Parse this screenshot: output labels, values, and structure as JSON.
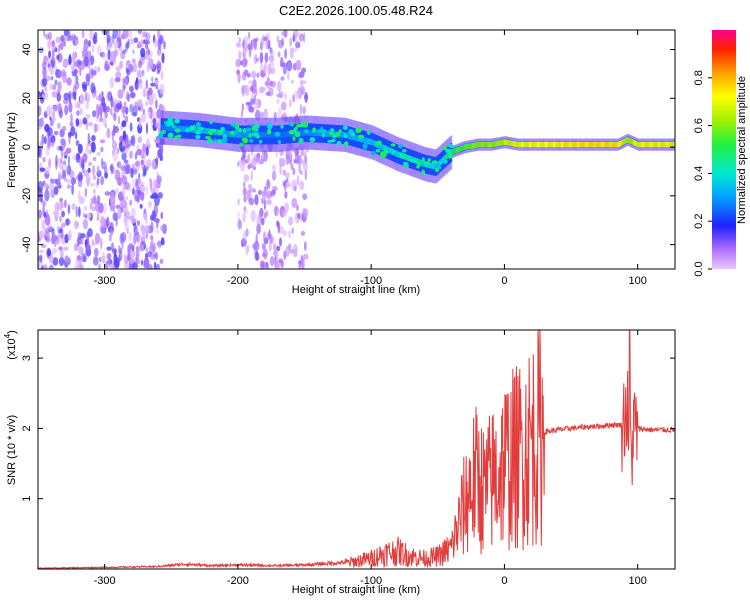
{
  "figure": {
    "title": "C2E2.2026.100.05.48.R24"
  },
  "chart_data": [
    {
      "type": "heatmap",
      "xlabel": "Height of straight line (km)",
      "ylabel": "Frequency (Hz)",
      "xlim": [
        -350,
        128
      ],
      "ylim": [
        -50,
        48
      ],
      "x_ticks": [
        -300,
        -200,
        -100,
        0,
        100
      ],
      "y_ticks": [
        -40,
        -20,
        0,
        20,
        40
      ],
      "colorbar": {
        "label": "Normalized spectral amplitude",
        "range": [
          0.0,
          1.0
        ],
        "ticks": [
          "0.0",
          "0.2",
          "0.4",
          "0.6",
          "0.8"
        ],
        "tick_values": [
          0.0,
          0.2,
          0.4,
          0.6,
          0.8
        ]
      },
      "ridge": {
        "x": [
          -258,
          -230,
          -200,
          -170,
          -150,
          -120,
          -100,
          -80,
          -60,
          -52,
          -40,
          -30,
          -20,
          -10,
          0,
          10,
          30,
          60,
          85,
          92,
          100,
          128
        ],
        "y": [
          8,
          7,
          5,
          5,
          6,
          5,
          2,
          -3,
          -7,
          -8,
          -2,
          0,
          1,
          1,
          2,
          1,
          1,
          1,
          1,
          3,
          1,
          1
        ],
        "amplitude": [
          0.25,
          0.35,
          0.3,
          0.25,
          0.28,
          0.32,
          0.35,
          0.4,
          0.45,
          0.35,
          0.5,
          0.55,
          0.6,
          0.6,
          0.65,
          0.7,
          0.72,
          0.75,
          0.75,
          0.6,
          0.7,
          0.7
        ]
      },
      "noise_region_x": [
        -350,
        -255
      ],
      "noise_region_2_x": [
        -200,
        -148
      ]
    },
    {
      "type": "line",
      "xlabel": "Height of straight line (km)",
      "ylabel": "SNR (10 * v/v)",
      "y_scale_label": "(x10",
      "y_scale_exp": "4",
      "xlim": [
        -350,
        128
      ],
      "ylim": [
        0,
        3.4
      ],
      "x_ticks": [
        -300,
        -200,
        -100,
        0,
        100
      ],
      "y_ticks": [
        1,
        2,
        3
      ],
      "series": [
        {
          "color": "#e23c3c",
          "x": [
            -350,
            -300,
            -260,
            -240,
            -220,
            -200,
            -170,
            -150,
            -120,
            -100,
            -90,
            -80,
            -70,
            -60,
            -50,
            -40,
            -35,
            -30,
            -25,
            -20,
            -15,
            -10,
            -5,
            0,
            5,
            10,
            15,
            20,
            25,
            30,
            40,
            50,
            60,
            70,
            80,
            88,
            92,
            95,
            97,
            100,
            110,
            128
          ],
          "y": [
            0.01,
            0.02,
            0.03,
            0.06,
            0.04,
            0.05,
            0.04,
            0.05,
            0.08,
            0.15,
            0.22,
            0.25,
            0.18,
            0.15,
            0.18,
            0.3,
            0.6,
            0.9,
            1.2,
            1.3,
            1.1,
            1.25,
            1.35,
            1.5,
            1.55,
            1.6,
            1.7,
            1.8,
            1.9,
            1.95,
            1.98,
            2.0,
            2.02,
            2.03,
            2.05,
            2.05,
            2.3,
            1.6,
            2.0,
            2.0,
            1.98,
            1.98
          ]
        }
      ]
    }
  ]
}
